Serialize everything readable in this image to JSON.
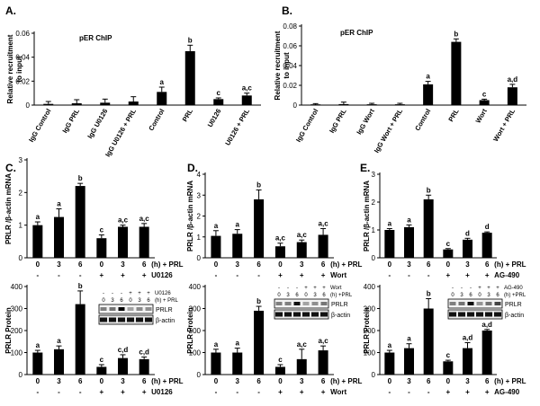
{
  "chart_data": [
    {
      "id": "A",
      "type": "bar",
      "panel_label": "A.",
      "title": "pER ChIP",
      "ylabel": "Relative recruitment to input",
      "ylim": [
        0,
        0.06
      ],
      "yticks": [
        "0",
        "0.02",
        "0.04",
        "0.06"
      ],
      "categories": [
        "IgG Control",
        "IgG PRL",
        "IgG U0126",
        "IgG U0126 + PRL",
        "Control",
        "PRL",
        "U0126",
        "U0126 + PRL"
      ],
      "values": [
        0.001,
        0.0015,
        0.002,
        0.003,
        0.011,
        0.045,
        0.005,
        0.008
      ],
      "errors": [
        0.002,
        0.003,
        0.003,
        0.004,
        0.004,
        0.005,
        0.001,
        0.002
      ],
      "letters": [
        "",
        "",
        "",
        "",
        "a",
        "b",
        "c",
        "a,c"
      ]
    },
    {
      "id": "B",
      "type": "bar",
      "panel_label": "B.",
      "title": "pER ChIP",
      "ylabel": "Relative recruitment to input",
      "ylim": [
        0,
        0.08
      ],
      "yticks": [
        "0",
        "0.02",
        "0.04",
        "0.06",
        "0.08"
      ],
      "categories": [
        "IgG Control",
        "IgG PRL",
        "IgG Wort",
        "IgG Wort + PRL",
        "Control",
        "PRL",
        "Wort",
        "Wort + PRL"
      ],
      "values": [
        0.0005,
        0.001,
        0.0008,
        0.0008,
        0.021,
        0.064,
        0.005,
        0.018
      ],
      "errors": [
        0.001,
        0.002,
        0.001,
        0.001,
        0.003,
        0.003,
        0.001,
        0.003
      ],
      "letters": [
        "",
        "",
        "",
        "",
        "a",
        "b",
        "c",
        "a,d"
      ]
    },
    {
      "id": "C",
      "type": "bar",
      "panel_label": "C.",
      "ylabel": "PRLR /β-actin mRNA",
      "ylim": [
        0,
        3
      ],
      "yticks": [
        "0",
        "1",
        "2",
        "3"
      ],
      "categories": [
        "0",
        "3",
        "6",
        "0",
        "3",
        "6"
      ],
      "values": [
        1.0,
        1.25,
        2.2,
        0.6,
        0.95,
        0.95
      ],
      "errors": [
        0.1,
        0.25,
        0.08,
        0.1,
        0.05,
        0.1
      ],
      "letters": [
        "a",
        "a",
        "b",
        "c",
        "a,c",
        "a,c"
      ],
      "treatment_signs": [
        "-",
        "-",
        "-",
        "+",
        "+",
        "+"
      ],
      "time_label": "(h) + PRL",
      "inhibitor": "U0126"
    },
    {
      "id": "D",
      "type": "bar",
      "panel_label": "D.",
      "ylabel": "PRLR /β-actin mRNA",
      "ylim": [
        0,
        4
      ],
      "yticks": [
        "0",
        "1",
        "2",
        "3",
        "4"
      ],
      "categories": [
        "0",
        "3",
        "6",
        "0",
        "3",
        "6"
      ],
      "values": [
        1.05,
        1.15,
        2.8,
        0.55,
        0.75,
        1.1
      ],
      "errors": [
        0.25,
        0.2,
        0.45,
        0.15,
        0.1,
        0.3
      ],
      "letters": [
        "a",
        "a",
        "b",
        "a,c",
        "a,c",
        "a,c"
      ],
      "treatment_signs": [
        "-",
        "-",
        "-",
        "+",
        "+",
        "+"
      ],
      "time_label": "(h) + PRL",
      "inhibitor": "Wort"
    },
    {
      "id": "E",
      "type": "bar",
      "panel_label": "E.",
      "ylabel": "PRLR /β-actin mRNA",
      "ylim": [
        0,
        3
      ],
      "yticks": [
        "0",
        "1",
        "2",
        "3"
      ],
      "categories": [
        "0",
        "3",
        "6",
        "0",
        "3",
        "6"
      ],
      "values": [
        1.0,
        1.1,
        2.1,
        0.3,
        0.65,
        0.9
      ],
      "errors": [
        0.05,
        0.08,
        0.15,
        0.03,
        0.05,
        0.03
      ],
      "letters": [
        "a",
        "a",
        "b",
        "c",
        "d",
        "d"
      ],
      "treatment_signs": [
        "-",
        "-",
        "-",
        "+",
        "+",
        "+"
      ],
      "time_label": "(h) + PRL",
      "inhibitor": "AG-490"
    },
    {
      "id": "C2",
      "type": "bar",
      "ylabel": "PRLR Protein",
      "ylim": [
        0,
        400
      ],
      "yticks": [
        "0",
        "100",
        "200",
        "300",
        "400"
      ],
      "categories": [
        "0",
        "3",
        "6",
        "0",
        "3",
        "6"
      ],
      "values": [
        100,
        115,
        320,
        35,
        75,
        70
      ],
      "errors": [
        10,
        15,
        60,
        10,
        15,
        10
      ],
      "letters": [
        "a",
        "a",
        "b",
        "c",
        "c,d",
        "c,d"
      ],
      "treatment_signs": [
        "-",
        "-",
        "-",
        "+",
        "+",
        "+"
      ],
      "time_label": "(h) + PRL",
      "inhibitor": "U0126",
      "blot": {
        "inhibitor_row": [
          "-",
          "-",
          "-",
          "+",
          "+",
          "+"
        ],
        "inhibitor_label": "U0126",
        "time_row": [
          "0",
          "3",
          "6",
          "0",
          "3",
          "6"
        ],
        "time_label": "(h) + PRL",
        "bands": [
          "PRLR",
          "β-actin"
        ]
      }
    },
    {
      "id": "D2",
      "type": "bar",
      "ylabel": "PRLR Protein",
      "ylim": [
        0,
        400
      ],
      "yticks": [
        "0",
        "100",
        "200",
        "300",
        "400"
      ],
      "categories": [
        "0",
        "3",
        "6",
        "0",
        "3",
        "6"
      ],
      "values": [
        100,
        100,
        290,
        35,
        70,
        110
      ],
      "errors": [
        15,
        20,
        20,
        10,
        45,
        20
      ],
      "letters": [
        "a",
        "a",
        "b",
        "c",
        "a,c",
        "a,c"
      ],
      "treatment_signs": [
        "-",
        "-",
        "-",
        "+",
        "+",
        "+"
      ],
      "time_label": "(h) + PRL",
      "inhibitor": "Wort",
      "blot": {
        "inhibitor_row": [
          "-",
          "-",
          "-",
          "+",
          "+",
          "+"
        ],
        "inhibitor_label": "Wort",
        "time_row": [
          "0",
          "3",
          "6",
          "0",
          "3",
          "6"
        ],
        "time_label": "(h) +PRL",
        "bands": [
          "PRLR",
          "β-actin"
        ]
      }
    },
    {
      "id": "E2",
      "type": "bar",
      "ylabel": "PRLR Protein",
      "ylim": [
        0,
        400
      ],
      "yticks": [
        "0",
        "100",
        "200",
        "300",
        "400"
      ],
      "categories": [
        "0",
        "3",
        "6",
        "0",
        "3",
        "6"
      ],
      "values": [
        100,
        120,
        300,
        60,
        120,
        200
      ],
      "errors": [
        10,
        20,
        45,
        5,
        25,
        5
      ],
      "letters": [
        "a",
        "a",
        "b",
        "c",
        "a,d",
        "a,d"
      ],
      "treatment_signs": [
        "-",
        "-",
        "-",
        "+",
        "+",
        "+"
      ],
      "time_label": "(h) + PRL",
      "inhibitor": "AG-490",
      "blot": {
        "inhibitor_row": [
          "-",
          "-",
          "-",
          "+",
          "+",
          "+"
        ],
        "inhibitor_label": "AG-490",
        "time_row": [
          "0",
          "3",
          "6",
          "0",
          "3",
          "6"
        ],
        "time_label": "(h) +PRL",
        "bands": [
          "PRLR",
          "β-actin"
        ]
      }
    }
  ]
}
